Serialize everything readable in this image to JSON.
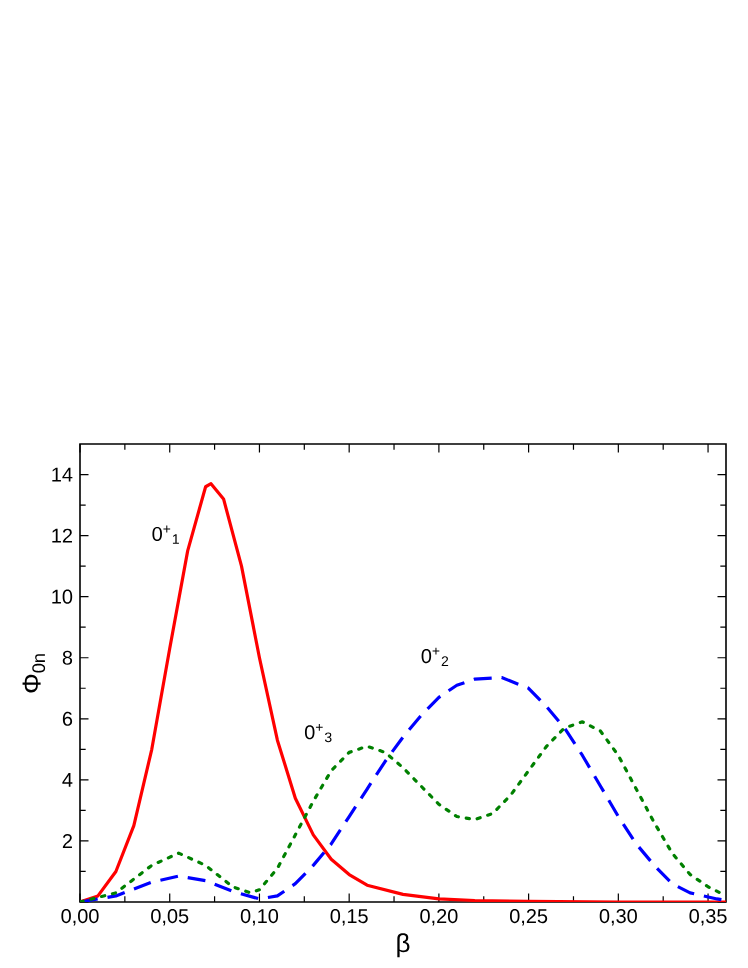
{
  "chart_data": {
    "type": "line",
    "xlabel": "β",
    "ylabel": "Φ$_{0n}$",
    "xlim": [
      0,
      0.36
    ],
    "ylim": [
      0,
      15
    ],
    "xticks": [
      {
        "value": 0,
        "label": "0,00"
      },
      {
        "value": 0.05,
        "label": "0,05"
      },
      {
        "value": 0.1,
        "label": "0,10"
      },
      {
        "value": 0.15,
        "label": "0,15"
      },
      {
        "value": 0.2,
        "label": "0,20"
      },
      {
        "value": 0.25,
        "label": "0,25"
      },
      {
        "value": 0.3,
        "label": "0,30"
      },
      {
        "value": 0.35,
        "label": "0,35"
      }
    ],
    "yticks": [
      {
        "value": 0,
        "label": null
      },
      2,
      4,
      6,
      8,
      10,
      12,
      14
    ],
    "marker": "none",
    "series": [
      {
        "color": "#ff0000",
        "line_style": "solid",
        "x": [
          0,
          0.01,
          0.02,
          0.03,
          0.04,
          0.05,
          0.06,
          0.07,
          0.073,
          0.08,
          0.09,
          0.1,
          0.11,
          0.12,
          0.13,
          0.14,
          0.15,
          0.16,
          0.18,
          0.2,
          0.22,
          0.25,
          0.3,
          0.36
        ],
        "values": [
          0,
          0.2,
          1.0,
          2.5,
          5.0,
          8.3,
          11.5,
          13.6,
          13.7,
          13.2,
          11.0,
          8.0,
          5.3,
          3.4,
          2.2,
          1.4,
          0.9,
          0.55,
          0.25,
          0.1,
          0.05,
          0.02,
          0,
          0
        ]
      },
      {
        "color": "#0000ff",
        "line_style": "dashed",
        "x": [
          0,
          0.02,
          0.04,
          0.055,
          0.07,
          0.085,
          0.1,
          0.11,
          0.12,
          0.13,
          0.14,
          0.15,
          0.16,
          0.17,
          0.18,
          0.19,
          0.2,
          0.21,
          0.22,
          0.235,
          0.25,
          0.26,
          0.27,
          0.28,
          0.29,
          0.3,
          0.31,
          0.32,
          0.33,
          0.34,
          0.355,
          0.36
        ],
        "values": [
          0,
          0.2,
          0.65,
          0.85,
          0.7,
          0.35,
          0.1,
          0.2,
          0.6,
          1.2,
          1.9,
          2.8,
          3.7,
          4.6,
          5.4,
          6.1,
          6.7,
          7.1,
          7.3,
          7.35,
          7.0,
          6.4,
          5.7,
          4.8,
          3.8,
          2.8,
          1.9,
          1.2,
          0.6,
          0.3,
          0.1,
          0.05
        ]
      },
      {
        "color": "#008000",
        "line_style": "dotted",
        "x": [
          0,
          0.02,
          0.04,
          0.055,
          0.07,
          0.085,
          0.095,
          0.1,
          0.11,
          0.12,
          0.13,
          0.14,
          0.15,
          0.16,
          0.17,
          0.18,
          0.19,
          0.2,
          0.21,
          0.22,
          0.23,
          0.24,
          0.25,
          0.26,
          0.27,
          0.28,
          0.29,
          0.3,
          0.31,
          0.32,
          0.33,
          0.34,
          0.35,
          0.36
        ],
        "values": [
          0,
          0.3,
          1.2,
          1.6,
          1.2,
          0.5,
          0.3,
          0.4,
          1.1,
          2.2,
          3.3,
          4.3,
          4.9,
          5.1,
          4.9,
          4.4,
          3.8,
          3.2,
          2.8,
          2.7,
          2.9,
          3.5,
          4.3,
          5.1,
          5.7,
          5.9,
          5.6,
          4.8,
          3.7,
          2.6,
          1.6,
          0.9,
          0.5,
          0.2
        ]
      }
    ],
    "annotations": [
      {
        "text": "0$^{+}$$_{1}$",
        "x": 0.06,
        "y": 11.5
      },
      {
        "text": "0$^{+}$$_{2}$",
        "x": 0.21,
        "y": 7.5
      },
      {
        "text": "0$^{+}$$_{3}$",
        "x": 0.145,
        "y": 5.0
      }
    ]
  }
}
